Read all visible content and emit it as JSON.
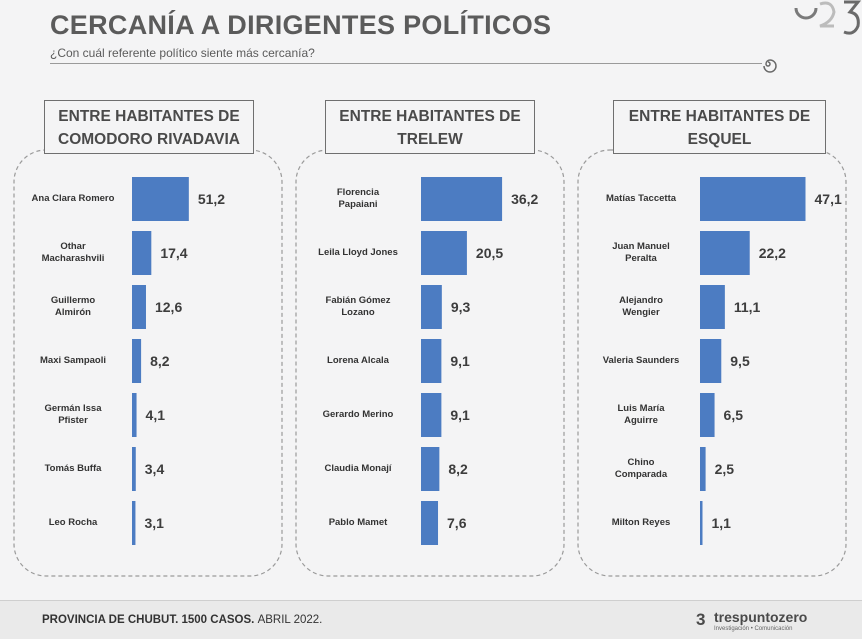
{
  "header": {
    "title": "CERCANÍA A DIRIGENTES POLÍTICOS",
    "subtitle": "¿Con cuál referente político siente más cercanía?"
  },
  "footer": {
    "text": "PROVINCIA DE CHUBUT. 1500 CASOS.",
    "date": "ABRIL 2022.",
    "brand_name": "trespuntozero",
    "brand_mark": "3",
    "brand_tagline": "Investigación • Comunicación"
  },
  "colors": {
    "bar": "#4c7cc2",
    "dashed_border": "#9a9a9a"
  },
  "icons": {
    "corner": "logo-swirl-icon",
    "header_end": "spiral-icon"
  },
  "chart_data": [
    {
      "type": "bar",
      "orientation": "horizontal",
      "title_lines": [
        "ENTRE HABITANTES DE",
        "COMODORO RIVADAVIA"
      ],
      "categories": [
        "Ana Clara Romero",
        "Othar Macharashvili",
        "Guillermo Almirón",
        "Maxi Sampaoli",
        "Germán Issa Pfister",
        "Tomás Buffa",
        "Leo Rocha"
      ],
      "label_lines": [
        [
          "Ana Clara Romero"
        ],
        [
          "Othar",
          "Macharashvili"
        ],
        [
          "Guillermo",
          "Almirón"
        ],
        [
          "Maxi Sampaoli"
        ],
        [
          "Germán Issa",
          "Pfister"
        ],
        [
          "Tomás Buffa"
        ],
        [
          "Leo Rocha"
        ]
      ],
      "values": [
        51.2,
        17.4,
        12.6,
        8.2,
        4.1,
        3.4,
        3.1
      ],
      "value_labels": [
        "51,2",
        "17,4",
        "12,6",
        "8,2",
        "4,1",
        "3,4",
        "3,1"
      ]
    },
    {
      "type": "bar",
      "orientation": "horizontal",
      "title_lines": [
        "ENTRE HABITANTES DE",
        "TRELEW"
      ],
      "categories": [
        "Florencia Papaiani",
        "Leila Lloyd Jones",
        "Fabián Gómez Lozano",
        "Lorena Alcala",
        "Gerardo Merino",
        "Claudia Monají",
        "Pablo Mamet"
      ],
      "label_lines": [
        [
          "Florencia",
          "Papaiani"
        ],
        [
          "Leila Lloyd Jones"
        ],
        [
          "Fabián Gómez",
          "Lozano"
        ],
        [
          "Lorena Alcala"
        ],
        [
          "Gerardo Merino"
        ],
        [
          "Claudia Monají"
        ],
        [
          "Pablo Mamet"
        ]
      ],
      "values": [
        36.2,
        20.5,
        9.3,
        9.1,
        9.1,
        8.2,
        7.6
      ],
      "value_labels": [
        "36,2",
        "20,5",
        "9,3",
        "9,1",
        "9,1",
        "8,2",
        "7,6"
      ]
    },
    {
      "type": "bar",
      "orientation": "horizontal",
      "title_lines": [
        "ENTRE HABITANTES DE",
        "ESQUEL"
      ],
      "categories": [
        "Matías Taccetta",
        "Juan Manuel Peralta",
        "Alejandro Wengier",
        "Valeria Saunders",
        "Luis María Aguirre",
        "Chino Comparada",
        "Milton Reyes"
      ],
      "label_lines": [
        [
          "Matías Taccetta"
        ],
        [
          "Juan Manuel",
          "Peralta"
        ],
        [
          "Alejandro",
          "Wengier"
        ],
        [
          "Valeria Saunders"
        ],
        [
          "Luis María",
          "Aguirre"
        ],
        [
          "Chino",
          "Comparada"
        ],
        [
          "Milton Reyes"
        ]
      ],
      "values": [
        47.1,
        22.2,
        11.1,
        9.5,
        6.5,
        2.5,
        1.1
      ],
      "value_labels": [
        "47,1",
        "22,2",
        "11,1",
        "9,5",
        "6,5",
        "2,5",
        "1,1"
      ]
    }
  ]
}
